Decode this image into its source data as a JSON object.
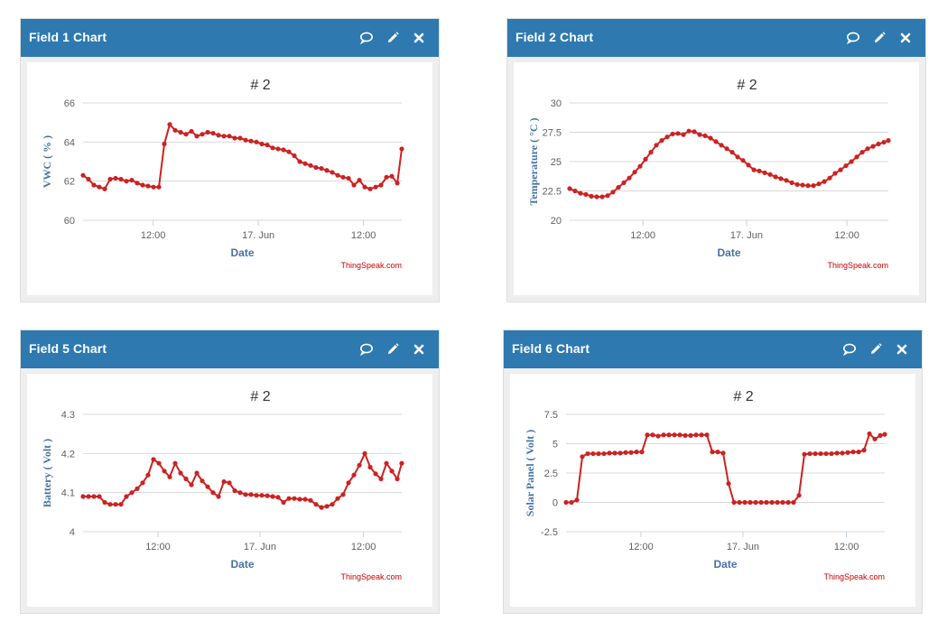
{
  "colors": {
    "header": "#2e79b0",
    "series": "#cc2222",
    "credit": "#cc0000",
    "axis_label": "#4572a7"
  },
  "icons": {
    "comment": "comment-icon",
    "edit": "pencil-icon",
    "close": "close-icon"
  },
  "widgets": [
    {
      "title": "Field 1 Chart",
      "chart_title": "# 2",
      "ylabel": "VWC ( % )",
      "xlabel": "Date",
      "credit": "ThingSpeak.com",
      "xticks": [
        "12:00",
        "17. Jun",
        "12:00"
      ],
      "yticks": [
        "60",
        "62",
        "64",
        "66"
      ]
    },
    {
      "title": "Field 2 Chart",
      "chart_title": "# 2",
      "ylabel": "Temperature ( °C )",
      "xlabel": "Date",
      "credit": "ThingSpeak.com",
      "xticks": [
        "12:00",
        "17. Jun",
        "12:00"
      ],
      "yticks": [
        "20",
        "22.5",
        "25",
        "27.5",
        "30"
      ]
    },
    {
      "title": "Field 5 Chart",
      "chart_title": "# 2",
      "ylabel": "Battery ( Volt )",
      "xlabel": "Date",
      "credit": "ThingSpeak.com",
      "xticks": [
        "12:00",
        "17. Jun",
        "12:00"
      ],
      "yticks": [
        "4",
        "4.1",
        "4.2",
        "4.3"
      ]
    },
    {
      "title": "Field 6 Chart",
      "chart_title": "# 2",
      "ylabel": "Solar Panel ( Volt )",
      "xlabel": "Date",
      "credit": "ThingSpeak.com",
      "xticks": [
        "12:00",
        "17. Jun",
        "12:00"
      ],
      "yticks": [
        "-2.5",
        "0",
        "2.5",
        "5",
        "7.5"
      ]
    }
  ],
  "chart_data": [
    {
      "type": "line",
      "title": "# 2",
      "xlabel": "Date",
      "ylabel": "VWC ( % )",
      "xlim": [
        0,
        100
      ],
      "ylim": [
        60,
        66
      ],
      "xtick_positions": [
        22,
        55,
        88
      ],
      "ytick_values": [
        60,
        62,
        64,
        66
      ],
      "series": [
        {
          "x": [
            0,
            1.7,
            3.4,
            5.1,
            6.8,
            8.5,
            10.2,
            11.9,
            13.6,
            15.3,
            17,
            18.7,
            20.4,
            22.1,
            23.8,
            25.5,
            27.2,
            28.9,
            30.6,
            32.3,
            34,
            35.7,
            37.4,
            39.1,
            40.8,
            42.5,
            44.2,
            45.9,
            47.6,
            49.3,
            51,
            52.7,
            54.4,
            56.1,
            57.8,
            59.5,
            61.2,
            62.9,
            64.6,
            66.3,
            68,
            69.7,
            71.4,
            73.1,
            74.8,
            76.5,
            78.2,
            79.9,
            81.6,
            83.3,
            85,
            86.7,
            88.4,
            90.1,
            91.8,
            93.5,
            95.2,
            96.9,
            98.6,
            100
          ],
          "y": [
            62.3,
            62.1,
            61.8,
            61.7,
            61.6,
            62.1,
            62.15,
            62.1,
            62,
            62.05,
            61.9,
            61.8,
            61.75,
            61.7,
            61.7,
            63.9,
            64.9,
            64.6,
            64.5,
            64.4,
            64.55,
            64.3,
            64.4,
            64.5,
            64.45,
            64.35,
            64.3,
            64.3,
            64.2,
            64.2,
            64.1,
            64.05,
            64,
            63.9,
            63.85,
            63.7,
            63.65,
            63.6,
            63.5,
            63.3,
            63,
            62.9,
            62.8,
            62.7,
            62.65,
            62.55,
            62.45,
            62.3,
            62.2,
            62.15,
            61.8,
            62.05,
            61.7,
            61.6,
            61.7,
            61.8,
            62.2,
            62.25,
            61.9,
            63.65
          ]
        }
      ]
    },
    {
      "type": "line",
      "title": "# 2",
      "xlabel": "Date",
      "ylabel": "Temperature ( °C )",
      "xlim": [
        0,
        100
      ],
      "ylim": [
        20,
        30
      ],
      "xtick_positions": [
        23,
        55.5,
        87
      ],
      "ytick_values": [
        20,
        22.5,
        25,
        27.5,
        30
      ],
      "series": [
        {
          "x": [
            0,
            1.7,
            3.4,
            5.1,
            6.8,
            8.5,
            10.2,
            11.9,
            13.6,
            15.3,
            17,
            18.7,
            20.4,
            22.1,
            23.8,
            25.5,
            27.2,
            28.9,
            30.6,
            32.3,
            34,
            35.7,
            37.4,
            39.1,
            40.8,
            42.5,
            44.2,
            45.9,
            47.6,
            49.3,
            51,
            52.7,
            54.4,
            56.1,
            57.8,
            59.5,
            61.2,
            62.9,
            64.6,
            66.3,
            68,
            69.7,
            71.4,
            73.1,
            74.8,
            76.5,
            78.2,
            79.9,
            81.6,
            83.3,
            85,
            86.7,
            88.4,
            90.1,
            91.8,
            93.5,
            95.2,
            96.9,
            98.6,
            100
          ],
          "y": [
            22.7,
            22.5,
            22.3,
            22.2,
            22.05,
            22,
            22,
            22.1,
            22.4,
            22.8,
            23.2,
            23.6,
            24.1,
            24.6,
            25.2,
            25.8,
            26.4,
            26.8,
            27.1,
            27.35,
            27.4,
            27.3,
            27.6,
            27.55,
            27.3,
            27.2,
            27,
            26.7,
            26.4,
            26.1,
            25.8,
            25.4,
            25.1,
            24.7,
            24.3,
            24.2,
            24.05,
            23.9,
            23.7,
            23.55,
            23.4,
            23.2,
            23.05,
            23,
            22.95,
            22.95,
            23.1,
            23.3,
            23.6,
            24,
            24.3,
            24.65,
            25,
            25.4,
            25.8,
            26.1,
            26.3,
            26.5,
            26.65,
            26.8
          ]
        }
      ]
    },
    {
      "type": "line",
      "title": "# 2",
      "xlabel": "Date",
      "ylabel": "Battery ( Volt )",
      "xlim": [
        0,
        100
      ],
      "ylim": [
        4,
        4.3
      ],
      "xtick_positions": [
        23.5,
        55.5,
        88
      ],
      "ytick_values": [
        4,
        4.1,
        4.2,
        4.3
      ],
      "series": [
        {
          "x": [
            0,
            1.7,
            3.4,
            5.1,
            6.8,
            8.5,
            10.2,
            11.9,
            13.6,
            15.3,
            17,
            18.7,
            20.4,
            22.1,
            23.8,
            25.5,
            27.2,
            28.9,
            30.6,
            32.3,
            34,
            35.7,
            37.4,
            39.1,
            40.8,
            42.5,
            44.2,
            45.9,
            47.6,
            49.3,
            51,
            52.7,
            54.4,
            56.1,
            57.8,
            59.5,
            61.2,
            62.9,
            64.6,
            66.3,
            68,
            69.7,
            71.4,
            73.1,
            74.8,
            76.5,
            78.2,
            79.9,
            81.6,
            83.3,
            85,
            86.7,
            88.4,
            90.1,
            91.8,
            93.5,
            95.2,
            96.9,
            98.6,
            100
          ],
          "y": [
            4.09,
            4.09,
            4.09,
            4.09,
            4.075,
            4.07,
            4.07,
            4.07,
            4.09,
            4.1,
            4.11,
            4.125,
            4.145,
            4.185,
            4.175,
            4.155,
            4.14,
            4.175,
            4.15,
            4.135,
            4.12,
            4.15,
            4.13,
            4.115,
            4.1,
            4.09,
            4.128,
            4.125,
            4.105,
            4.1,
            4.095,
            4.095,
            4.093,
            4.093,
            4.092,
            4.09,
            4.088,
            4.075,
            4.085,
            4.085,
            4.083,
            4.083,
            4.08,
            4.07,
            4.062,
            4.065,
            4.07,
            4.085,
            4.095,
            4.125,
            4.145,
            4.17,
            4.2,
            4.165,
            4.148,
            4.135,
            4.175,
            4.155,
            4.135,
            4.175
          ]
        }
      ]
    },
    {
      "type": "line",
      "title": "# 2",
      "xlabel": "Date",
      "ylabel": "Solar Panel ( Volt )",
      "xlim": [
        0,
        100
      ],
      "ylim": [
        -2.5,
        7.5
      ],
      "xtick_positions": [
        23.5,
        55.5,
        88
      ],
      "ytick_values": [
        -2.5,
        0,
        2.5,
        5,
        7.5
      ],
      "series": [
        {
          "x": [
            0,
            1.7,
            3.4,
            5.1,
            6.8,
            8.5,
            10.2,
            11.9,
            13.6,
            15.3,
            17,
            18.7,
            20.4,
            22.1,
            23.8,
            25.5,
            27.2,
            28.9,
            30.6,
            32.3,
            34,
            35.7,
            37.4,
            39.1,
            40.8,
            42.5,
            44.2,
            45.9,
            47.6,
            49.3,
            51,
            52.7,
            54.4,
            56.1,
            57.8,
            59.5,
            61.2,
            62.9,
            64.6,
            66.3,
            68,
            69.7,
            71.4,
            73.1,
            74.8,
            76.5,
            78.2,
            79.9,
            81.6,
            83.3,
            85,
            86.7,
            88.4,
            90.1,
            91.8,
            93.5,
            95.2,
            96.9,
            98.6,
            100
          ],
          "y": [
            0,
            0,
            0.2,
            3.9,
            4.15,
            4.15,
            4.15,
            4.15,
            4.2,
            4.2,
            4.2,
            4.25,
            4.25,
            4.3,
            4.3,
            5.75,
            5.75,
            5.65,
            5.75,
            5.75,
            5.75,
            5.75,
            5.7,
            5.7,
            5.75,
            5.75,
            5.75,
            4.3,
            4.3,
            4.2,
            1.6,
            0,
            0,
            0,
            0,
            0,
            0,
            0,
            0,
            0,
            0,
            0,
            0,
            0.6,
            4.1,
            4.15,
            4.15,
            4.15,
            4.15,
            4.15,
            4.2,
            4.2,
            4.25,
            4.3,
            4.3,
            4.45,
            5.85,
            5.4,
            5.7,
            5.8
          ]
        }
      ]
    }
  ]
}
